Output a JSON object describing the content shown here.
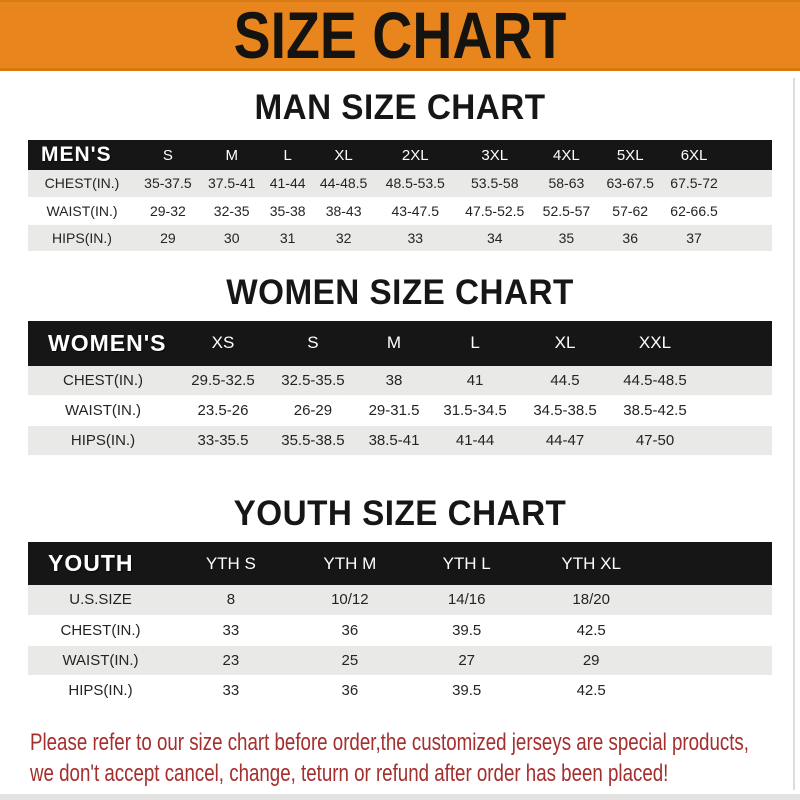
{
  "banner": {
    "title": "SIZE CHART",
    "bg_color": "#E8861D",
    "text_color": "#151310"
  },
  "sections": [
    {
      "id": "men",
      "title": "MAN SIZE CHART",
      "table": {
        "label": "MEN'S",
        "columns": [
          "S",
          "M",
          "L",
          "XL",
          "2XL",
          "3XL",
          "4XL",
          "5XL",
          "6XL"
        ],
        "rows": [
          {
            "label": "CHEST(IN.)",
            "values": [
              "35-37.5",
              "37.5-41",
              "41-44",
              "44-48.5",
              "48.5-53.5",
              "53.5-58",
              "58-63",
              "63-67.5",
              "67.5-72"
            ]
          },
          {
            "label": "WAIST(IN.)",
            "values": [
              "29-32",
              "32-35",
              "35-38",
              "38-43",
              "43-47.5",
              "47.5-52.5",
              "52.5-57",
              "57-62",
              "62-66.5"
            ]
          },
          {
            "label": "HIPS(IN.)",
            "values": [
              "29",
              "30",
              "31",
              "32",
              "33",
              "34",
              "35",
              "36",
              "37"
            ]
          }
        ]
      }
    },
    {
      "id": "women",
      "title": "WOMEN SIZE CHART",
      "table": {
        "label": "WOMEN'S",
        "columns": [
          "XS",
          "S",
          "M",
          "L",
          "XL",
          "XXL"
        ],
        "rows": [
          {
            "label": "CHEST(IN.)",
            "values": [
              "29.5-32.5",
              "32.5-35.5",
              "38",
              "41",
              "44.5",
              "44.5-48.5"
            ]
          },
          {
            "label": "WAIST(IN.)",
            "values": [
              "23.5-26",
              "26-29",
              "29-31.5",
              "31.5-34.5",
              "34.5-38.5",
              "38.5-42.5"
            ]
          },
          {
            "label": "HIPS(IN.)",
            "values": [
              "33-35.5",
              "35.5-38.5",
              "38.5-41",
              "41-44",
              "44-47",
              "47-50"
            ]
          }
        ]
      }
    },
    {
      "id": "youth",
      "title": "YOUTH SIZE CHART",
      "table": {
        "label": "YOUTH",
        "columns": [
          "YTH S",
          "YTH M",
          "YTH L",
          "YTH XL"
        ],
        "rows": [
          {
            "label": "U.S.SIZE",
            "values": [
              "8",
              "10/12",
              "14/16",
              "18/20"
            ]
          },
          {
            "label": "CHEST(IN.)",
            "values": [
              "33",
              "36",
              "39.5",
              "42.5"
            ]
          },
          {
            "label": "WAIST(IN.)",
            "values": [
              "23",
              "25",
              "27",
              "29"
            ]
          },
          {
            "label": "HIPS(IN.)",
            "values": [
              "33",
              "36",
              "39.5",
              "42.5"
            ]
          }
        ]
      }
    }
  ],
  "footer": {
    "text_color": "#A52E2E",
    "lines": [
      "Please refer to our size chart before order,the customized jerseys are special products,",
      "we don't accept cancel, change, teturn or refund after order has been placed!"
    ]
  }
}
